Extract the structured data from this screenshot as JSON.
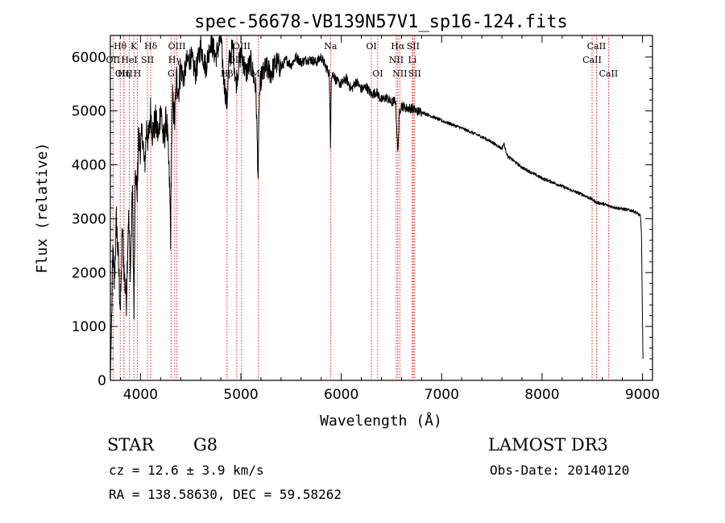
{
  "chart_data": {
    "type": "line",
    "title": "spec-56678-VB139N57V1_sp16-124.fits",
    "xlabel": "Wavelength (Å)",
    "ylabel": "Flux (relative)",
    "xlim": [
      3700,
      9100
    ],
    "ylim": [
      0,
      6400
    ],
    "xticks": [
      4000,
      5000,
      6000,
      7000,
      8000,
      9000
    ],
    "yticks": [
      0,
      1000,
      2000,
      3000,
      4000,
      5000,
      6000
    ],
    "series": [
      {
        "name": "spectrum",
        "x": [
          3700,
          3710,
          3725,
          3740,
          3760,
          3780,
          3800,
          3820,
          3840,
          3860,
          3880,
          3900,
          3920,
          3935,
          3950,
          3965,
          3980,
          4000,
          4020,
          4040,
          4060,
          4080,
          4100,
          4120,
          4150,
          4180,
          4200,
          4230,
          4260,
          4290,
          4300,
          4310,
          4320,
          4340,
          4360,
          4380,
          4400,
          4430,
          4460,
          4500,
          4550,
          4600,
          4650,
          4700,
          4750,
          4800,
          4830,
          4861,
          4880,
          4920,
          4950,
          5000,
          5050,
          5100,
          5150,
          5172,
          5183,
          5200,
          5250,
          5300,
          5350,
          5400,
          5450,
          5500,
          5550,
          5600,
          5650,
          5700,
          5750,
          5800,
          5850,
          5880,
          5893,
          5900,
          5920,
          5950,
          6000,
          6050,
          6100,
          6150,
          6200,
          6250,
          6300,
          6350,
          6400,
          6450,
          6500,
          6540,
          6563,
          6580,
          6600,
          6650,
          6700,
          6750,
          6800,
          6850,
          6900,
          6950,
          7000,
          7100,
          7200,
          7300,
          7400,
          7500,
          7550,
          7600,
          7620,
          7640,
          7660,
          7700,
          7800,
          7900,
          8000,
          8100,
          8200,
          8300,
          8400,
          8498,
          8542,
          8600,
          8662,
          8700,
          8800,
          8900,
          8950,
          8980,
          8990,
          9000,
          9005
        ],
        "values": [
          0,
          900,
          2400,
          1800,
          3000,
          2200,
          1300,
          2800,
          1900,
          1500,
          3100,
          2000,
          3600,
          1200,
          3900,
          3400,
          4500,
          4300,
          4600,
          3900,
          4700,
          4400,
          5000,
          4600,
          4800,
          4500,
          5100,
          4400,
          4900,
          3600,
          2700,
          4300,
          5200,
          4800,
          5600,
          5400,
          5800,
          5600,
          5900,
          6000,
          5700,
          6200,
          5800,
          6300,
          6000,
          6350,
          5600,
          5100,
          5900,
          6200,
          5500,
          6100,
          5700,
          5900,
          5400,
          3750,
          5200,
          5600,
          5800,
          5700,
          5900,
          5800,
          5950,
          5850,
          6000,
          5900,
          5950,
          5950,
          5900,
          6000,
          5800,
          5700,
          4400,
          5600,
          5700,
          5550,
          5500,
          5600,
          5400,
          5550,
          5400,
          5450,
          5300,
          5350,
          5200,
          5250,
          5150,
          5200,
          4200,
          5000,
          5100,
          5050,
          5050,
          5000,
          4980,
          4940,
          4900,
          4860,
          4820,
          4750,
          4680,
          4600,
          4520,
          4420,
          4360,
          4300,
          4400,
          4250,
          4150,
          4100,
          3950,
          3850,
          3750,
          3680,
          3600,
          3520,
          3450,
          3360,
          3300,
          3280,
          3240,
          3220,
          3180,
          3150,
          3100,
          3050,
          2700,
          1200,
          400
        ]
      }
    ],
    "lines": [
      {
        "name": "Hθ",
        "x": 3798,
        "row": 1
      },
      {
        "name": "OII",
        "x": 3727,
        "row": 2
      },
      {
        "name": "OIII",
        "x": 3835,
        "row": 3
      },
      {
        "name": "K",
        "x": 3934,
        "row": 1
      },
      {
        "name": "HeI",
        "x": 3889,
        "row": 2
      },
      {
        "name": "Hη",
        "x": 3835,
        "row": 3
      },
      {
        "name": "Hδ",
        "x": 4102,
        "row": 1
      },
      {
        "name": "SII",
        "x": 4070,
        "row": 2
      },
      {
        "name": "H",
        "x": 3969,
        "row": 3
      },
      {
        "name": "OIII",
        "x": 4363,
        "row": 1
      },
      {
        "name": "Hγ",
        "x": 4341,
        "row": 2
      },
      {
        "name": "G",
        "x": 4305,
        "row": 3
      },
      {
        "name": "OIII",
        "x": 5007,
        "row": 1
      },
      {
        "name": "OIII",
        "x": 4959,
        "row": 2
      },
      {
        "name": "Hβ",
        "x": 4861,
        "row": 3
      },
      {
        "name": "Mg",
        "x": 5175,
        "row": 3
      },
      {
        "name": "Na",
        "x": 5893,
        "row": 1
      },
      {
        "name": "OI",
        "x": 6300,
        "row": 1
      },
      {
        "name": "OI",
        "x": 6363,
        "row": 3
      },
      {
        "name": "Hα",
        "x": 6563,
        "row": 1
      },
      {
        "name": "SII",
        "x": 6716,
        "row": 1
      },
      {
        "name": "NII",
        "x": 6548,
        "row": 2
      },
      {
        "name": "Li",
        "x": 6708,
        "row": 2
      },
      {
        "name": "NII",
        "x": 6583,
        "row": 3
      },
      {
        "name": "SII",
        "x": 6731,
        "row": 3
      },
      {
        "name": "CaII",
        "x": 8542,
        "row": 1
      },
      {
        "name": "CaII",
        "x": 8498,
        "row": 2
      },
      {
        "name": "CaII",
        "x": 8662,
        "row": 3
      }
    ],
    "line_color": "#ff0000",
    "spectrum_color": "#000000"
  },
  "info": {
    "object_class": "STAR",
    "subclass": "G8",
    "survey": "LAMOST DR3",
    "redshift": "cz = 12.6 ± 3.9 km/s",
    "obs_date": "Obs-Date: 20140120",
    "coords": "RA = 138.58630, DEC =  59.58262"
  }
}
